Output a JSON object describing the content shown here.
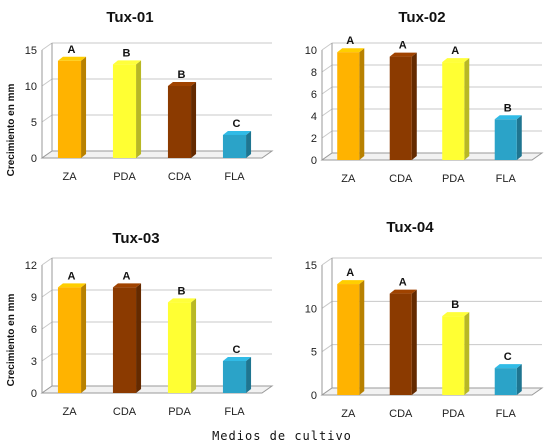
{
  "figure": {
    "y_axis_label": "Crecimiento en mm",
    "x_axis_label": "Medios de cultivo"
  },
  "colors": {
    "ZA": "#ffb300",
    "PDA": "#ffff33",
    "CDA": "#8b3a00",
    "FLA": "#2ba3c8"
  },
  "chart_data": [
    {
      "type": "bar",
      "title": "Tux-01",
      "categories": [
        "ZA",
        "PDA",
        "CDA",
        "FLA"
      ],
      "values": [
        13.5,
        13.0,
        10.0,
        3.2
      ],
      "letters": [
        "A",
        "B",
        "B",
        "C"
      ],
      "ylim": [
        0,
        15
      ],
      "yticks": [
        0,
        5,
        10,
        15
      ],
      "ylabel": "Crecimiento en mm",
      "grid": true
    },
    {
      "type": "bar",
      "title": "Tux-02",
      "categories": [
        "ZA",
        "CDA",
        "PDA",
        "FLA"
      ],
      "values": [
        9.8,
        9.4,
        8.9,
        3.7
      ],
      "letters": [
        "A",
        "A",
        "A",
        "B"
      ],
      "ylim": [
        0,
        10
      ],
      "yticks": [
        0,
        2,
        4,
        6,
        8,
        10
      ],
      "ylabel": "",
      "grid": true
    },
    {
      "type": "bar",
      "title": "Tux-03",
      "categories": [
        "ZA",
        "CDA",
        "PDA",
        "FLA"
      ],
      "values": [
        9.9,
        9.9,
        8.5,
        3.0
      ],
      "letters": [
        "A",
        "A",
        "B",
        "C"
      ],
      "ylim": [
        0,
        12
      ],
      "yticks": [
        0,
        3,
        6,
        9,
        12
      ],
      "ylabel": "Crecimiento en mm",
      "grid": true
    },
    {
      "type": "bar",
      "title": "Tux-04",
      "categories": [
        "ZA",
        "CDA",
        "PDA",
        "FLA"
      ],
      "values": [
        12.8,
        11.7,
        9.1,
        3.1
      ],
      "letters": [
        "A",
        "A",
        "B",
        "C"
      ],
      "ylim": [
        0,
        15
      ],
      "yticks": [
        0,
        5,
        10,
        15
      ],
      "ylabel": "",
      "grid": true
    }
  ]
}
